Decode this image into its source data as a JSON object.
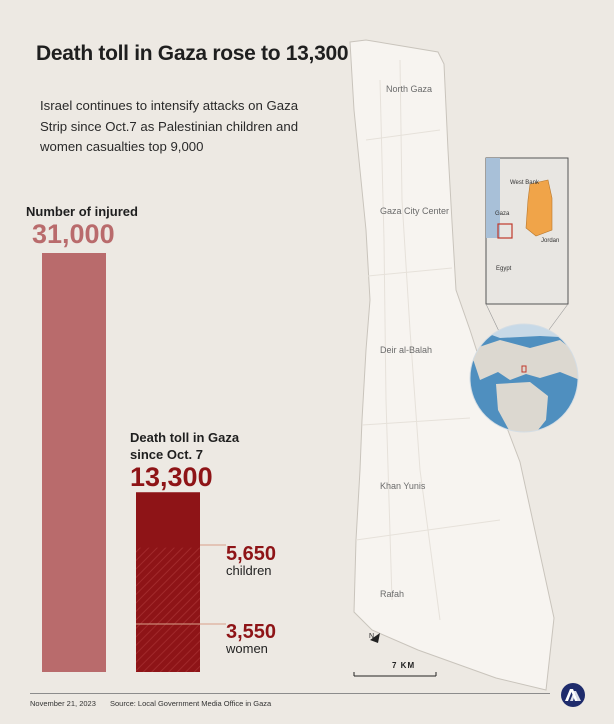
{
  "title": "Death toll in Gaza rose to 13,300",
  "subtitle": "Israel continues to intensify attacks on Gaza Strip since Oct.7 as Palestinian children and women casualties top 9,000",
  "chart_data": {
    "type": "bar",
    "categories": [
      "Number of injured",
      "Death toll in Gaza since Oct. 7"
    ],
    "values": [
      31000,
      13300
    ],
    "breakdown": [
      {
        "name": "children",
        "value": 5650
      },
      {
        "name": "women",
        "value": 3550
      }
    ],
    "colors": {
      "injured": "#b96b6c",
      "death": "#8e1417"
    }
  },
  "labels": {
    "injured": "Number of injured",
    "injured_value": "31,000",
    "death": "Death toll in Gaza since Oct. 7",
    "death_value": "13,300",
    "children_value": "5,650",
    "children": "children",
    "women_value": "3,550",
    "women": "women"
  },
  "map": {
    "regions": [
      "North Gaza",
      "Gaza City Center",
      "Deir al-Balah",
      "Khan Yunis",
      "Rafah"
    ],
    "scale": "7 KM",
    "inset_labels": [
      "West Bank",
      "Gaza",
      "Jordan",
      "Egypt"
    ]
  },
  "footer": {
    "date": "November 21, 2023",
    "source": "Source: Local Government Media Office in Gaza"
  }
}
